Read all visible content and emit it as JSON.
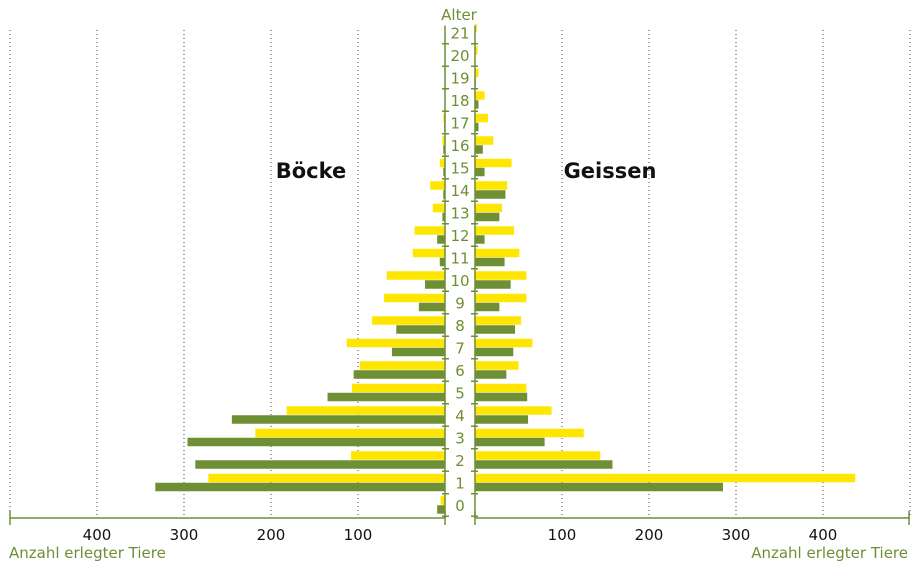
{
  "chart_data": {
    "type": "bar",
    "orientation": "horizontal-pyramid",
    "title": "",
    "center_axis_label": "Alter",
    "xlabel_left": "Anzahl erlegter Tiere",
    "xlabel_right": "Anzahl erlegter Tiere",
    "left_group_label": "Böcke",
    "right_group_label": "Geissen",
    "ages": [
      "0",
      "1",
      "2",
      "3",
      "4",
      "5",
      "6",
      "7",
      "8",
      "9",
      "10",
      "11",
      "12",
      "13",
      "14",
      "15",
      "16",
      "17",
      "18",
      "19",
      "20",
      "21"
    ],
    "x_ticks": [
      "100",
      "200",
      "300",
      "400"
    ],
    "x_max": 500,
    "grid": "dotted-vertical",
    "colors": {
      "series_a": "#ffe600",
      "series_b": "#6f8f35",
      "axis": "#6f8f35",
      "label_text": "#6f8f35"
    },
    "series": [
      {
        "side": "left",
        "color_key": "series_a",
        "values": [
          5,
          272,
          108,
          218,
          182,
          107,
          98,
          113,
          84,
          70,
          67,
          37,
          35,
          14,
          17,
          6,
          3,
          2,
          0,
          0,
          0,
          0
        ]
      },
      {
        "side": "left",
        "color_key": "series_b",
        "values": [
          9,
          333,
          287,
          296,
          245,
          135,
          105,
          61,
          56,
          30,
          23,
          6,
          9,
          3,
          2,
          2,
          2,
          1,
          0,
          0,
          0,
          0
        ]
      },
      {
        "side": "right",
        "color_key": "series_a",
        "values": [
          0,
          437,
          144,
          125,
          88,
          59,
          50,
          66,
          53,
          59,
          59,
          51,
          45,
          31,
          37,
          42,
          21,
          15,
          11,
          4,
          3,
          2
        ]
      },
      {
        "side": "right",
        "color_key": "series_b",
        "values": [
          0,
          285,
          158,
          80,
          61,
          60,
          36,
          44,
          46,
          28,
          41,
          34,
          11,
          28,
          35,
          11,
          9,
          4,
          4,
          1,
          0,
          0
        ]
      }
    ]
  }
}
